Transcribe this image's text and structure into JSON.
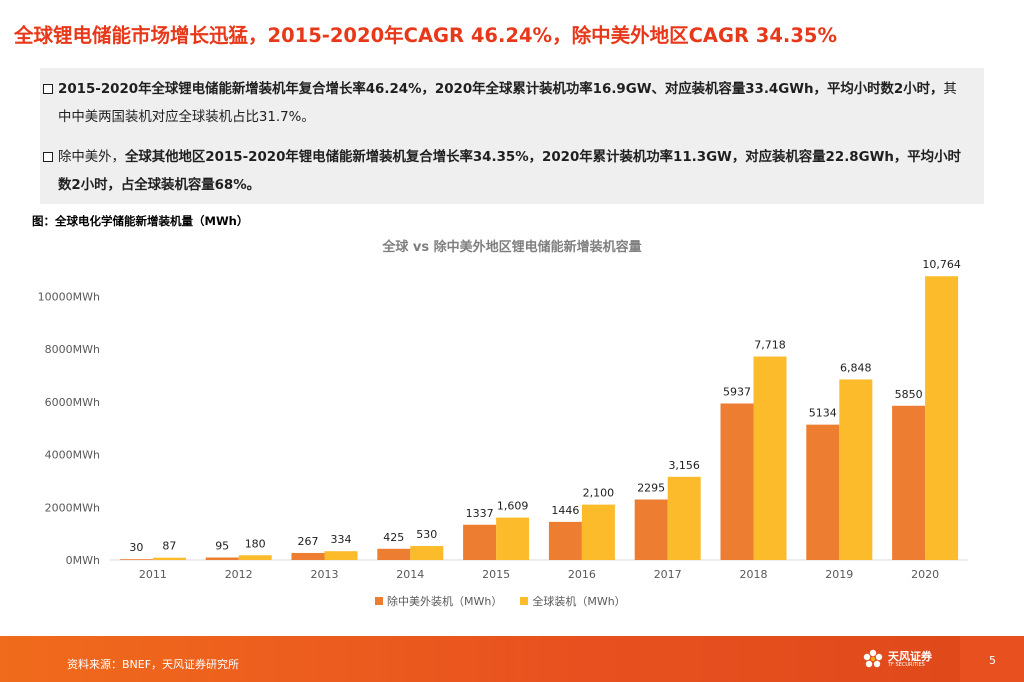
{
  "page_title": "全球锂电储能市场增长迅猛，2015-2020年CAGR 46.24%，除中美外地区CAGR 34.35%",
  "summary": {
    "bullet1": {
      "bold": "2015-2020年全球锂电储能新增装机年复合增长率46.24%，2020年全球累计装机功率16.9GW、对应装机容量33.4GWh，平均小时数2小时，",
      "normal": "其中中美两国装机对应全球装机占比31.7%。"
    },
    "bullet2": {
      "normal": "除中美外，",
      "bold": "全球其他地区2015-2020年锂电储能新增装机复合增长率34.35%，2020年累计装机功率11.3GW，对应装机容量22.8GWh，平均小时数2小时，占全球装机容量68%。"
    }
  },
  "figure_caption": "图：全球电化学储能新增装机量（MWh）",
  "colors": {
    "title_red": "#e8381a",
    "series_excl": "#ed7d31",
    "series_global": "#fbbb2b",
    "footer": "#e8511f"
  },
  "chart_data": {
    "type": "bar",
    "title": "全球 vs 除中美外地区锂电储能新增装机容量",
    "categories": [
      "2011",
      "2012",
      "2013",
      "2014",
      "2015",
      "2016",
      "2017",
      "2018",
      "2019",
      "2020"
    ],
    "series": [
      {
        "name": "除中美外装机（MWh）",
        "values": [
          30,
          95,
          267,
          425,
          1337,
          1446,
          2295,
          5937,
          5134,
          5850
        ],
        "labels": [
          "30",
          "95",
          "267",
          "425",
          "1337",
          "1446",
          "2295",
          "5937",
          "5134",
          "5850"
        ],
        "color": "#ed7d31"
      },
      {
        "name": "全球装机（MWh）",
        "values": [
          87,
          180,
          334,
          530,
          1609,
          2100,
          3156,
          7718,
          6848,
          10764
        ],
        "labels": [
          "87",
          "180",
          "334",
          "530",
          "1,609",
          "2,100",
          "3,156",
          "7,718",
          "6,848",
          "10,764"
        ],
        "color": "#fbbb2b"
      }
    ],
    "yticks": [
      "0MWh",
      "2000MWh",
      "4000MWh",
      "6000MWh",
      "8000MWh",
      "10000MWh"
    ],
    "ytick_values": [
      0,
      2000,
      4000,
      6000,
      8000,
      10000
    ],
    "ylim": [
      0,
      11000
    ],
    "grid": false,
    "legend": "bottom"
  },
  "footer": {
    "source": "资料来源：BNEF，天风证券研究所",
    "logo_name": "天风证券",
    "logo_sub": "TF SECURITIES",
    "page_number": "5"
  }
}
